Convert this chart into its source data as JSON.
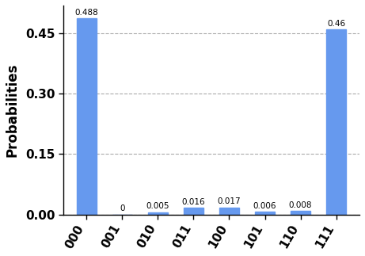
{
  "categories": [
    "000",
    "001",
    "010",
    "011",
    "100",
    "101",
    "110",
    "111"
  ],
  "values": [
    0.488,
    0.0,
    0.005,
    0.016,
    0.017,
    0.006,
    0.008,
    0.46
  ],
  "bar_color": "#6699ee",
  "ylabel": "Probabilities",
  "ylim": [
    0,
    0.52
  ],
  "yticks": [
    0.0,
    0.15,
    0.3,
    0.45
  ],
  "grid_color": "#aaaaaa",
  "bar_width": 0.55,
  "annotation_fontsize": 7.5,
  "tick_fontsize": 11,
  "ylabel_fontsize": 12
}
